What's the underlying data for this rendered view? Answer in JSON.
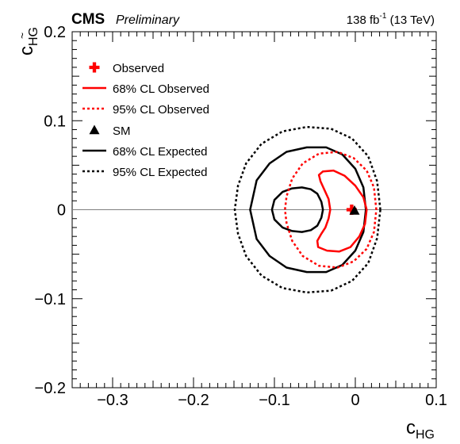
{
  "header": {
    "experiment": "CMS",
    "status": "Preliminary",
    "lumi_value": "138 fb",
    "lumi_exp": "-1",
    "energy": " (13 TeV)"
  },
  "chart_data": {
    "type": "contour",
    "xlabel_main": "c",
    "xlabel_sub": "HG",
    "ylabel_main": "c",
    "ylabel_sub": "HG",
    "ylabel_tilde": "~",
    "xlim": [
      -0.35,
      0.1
    ],
    "ylim": [
      -0.2,
      0.2
    ],
    "xticks": [
      -0.3,
      -0.2,
      -0.1,
      0,
      0.1
    ],
    "xtick_labels": [
      "−0.3",
      "−0.2",
      "−0.1",
      "0",
      "0.1"
    ],
    "yticks": [
      -0.2,
      -0.1,
      0,
      0.1,
      0.2
    ],
    "ytick_labels": [
      "−0.2",
      "−0.1",
      "0",
      "0.1",
      "0.2"
    ],
    "reference_line_y": 0,
    "legend_position": "top-left",
    "legend": [
      {
        "label": "Observed",
        "marker": "cross",
        "color": "#ff0000"
      },
      {
        "label": "68% CL Observed",
        "line": "solid",
        "color": "#ff0000"
      },
      {
        "label": "95% CL Observed",
        "line": "dotted",
        "color": "#ff0000"
      },
      {
        "label": "SM",
        "marker": "triangle",
        "color": "#000000"
      },
      {
        "label": "68% CL Expected",
        "line": "solid",
        "color": "#000000"
      },
      {
        "label": "95% CL Expected",
        "line": "dotted",
        "color": "#000000"
      }
    ],
    "points": {
      "observed": {
        "x": -0.005,
        "y": 0.0
      },
      "sm": {
        "x": 0.0,
        "y": 0.0
      }
    },
    "contours": {
      "expected_68": [
        [
          -0.04,
          0.0
        ],
        [
          -0.042,
          0.009
        ],
        [
          -0.047,
          0.018
        ],
        [
          -0.055,
          0.023
        ],
        [
          -0.066,
          0.025
        ],
        [
          -0.078,
          0.024
        ],
        [
          -0.09,
          0.02
        ],
        [
          -0.1,
          0.011
        ],
        [
          -0.103,
          0.0
        ],
        [
          -0.1,
          -0.011
        ],
        [
          -0.09,
          -0.02
        ],
        [
          -0.078,
          -0.024
        ],
        [
          -0.066,
          -0.025
        ],
        [
          -0.055,
          -0.023
        ],
        [
          -0.047,
          -0.018
        ],
        [
          -0.042,
          -0.009
        ],
        [
          -0.04,
          0.0
        ]
      ],
      "expected_95": [
        [
          0.013,
          0.0
        ],
        [
          0.01,
          0.025
        ],
        [
          0.0,
          0.046
        ],
        [
          -0.016,
          0.062
        ],
        [
          -0.036,
          0.07
        ],
        [
          -0.06,
          0.07
        ],
        [
          -0.085,
          0.065
        ],
        [
          -0.106,
          0.052
        ],
        [
          -0.122,
          0.033
        ],
        [
          -0.13,
          0.0
        ],
        [
          -0.122,
          -0.033
        ],
        [
          -0.106,
          -0.052
        ],
        [
          -0.085,
          -0.065
        ],
        [
          -0.06,
          -0.07
        ],
        [
          -0.036,
          -0.07
        ],
        [
          -0.016,
          -0.062
        ],
        [
          0.0,
          -0.046
        ],
        [
          0.01,
          -0.025
        ],
        [
          0.013,
          0.0
        ]
      ],
      "expected_99": [
        [
          0.031,
          0.0
        ],
        [
          0.027,
          0.032
        ],
        [
          0.016,
          0.06
        ],
        [
          -0.004,
          0.08
        ],
        [
          -0.03,
          0.091
        ],
        [
          -0.06,
          0.093
        ],
        [
          -0.09,
          0.088
        ],
        [
          -0.116,
          0.074
        ],
        [
          -0.135,
          0.052
        ],
        [
          -0.145,
          0.027
        ],
        [
          -0.149,
          0.0
        ],
        [
          -0.145,
          -0.027
        ],
        [
          -0.135,
          -0.052
        ],
        [
          -0.116,
          -0.074
        ],
        [
          -0.09,
          -0.088
        ],
        [
          -0.06,
          -0.093
        ],
        [
          -0.03,
          -0.091
        ],
        [
          -0.004,
          -0.08
        ],
        [
          0.016,
          -0.06
        ],
        [
          0.027,
          -0.032
        ],
        [
          0.031,
          0.0
        ]
      ],
      "observed_68": [
        [
          -0.04,
          0.043
        ],
        [
          -0.027,
          0.044
        ],
        [
          -0.013,
          0.038
        ],
        [
          0.0,
          0.027
        ],
        [
          0.01,
          0.014
        ],
        [
          0.014,
          0.0
        ],
        [
          0.012,
          -0.016
        ],
        [
          0.005,
          -0.03
        ],
        [
          -0.006,
          -0.042
        ],
        [
          -0.02,
          -0.047
        ],
        [
          -0.035,
          -0.046
        ],
        [
          -0.046,
          -0.042
        ],
        [
          -0.047,
          -0.035
        ],
        [
          -0.042,
          -0.027
        ],
        [
          -0.037,
          -0.02
        ],
        [
          -0.033,
          -0.01
        ],
        [
          -0.031,
          0.0
        ],
        [
          -0.033,
          0.012
        ],
        [
          -0.038,
          0.022
        ],
        [
          -0.043,
          0.032
        ],
        [
          -0.045,
          0.039
        ],
        [
          -0.04,
          0.043
        ]
      ],
      "observed_95": [
        [
          0.026,
          0.0
        ],
        [
          0.023,
          0.025
        ],
        [
          0.014,
          0.044
        ],
        [
          -0.002,
          0.058
        ],
        [
          -0.022,
          0.065
        ],
        [
          -0.045,
          0.063
        ],
        [
          -0.065,
          0.052
        ],
        [
          -0.078,
          0.035
        ],
        [
          -0.085,
          0.015
        ],
        [
          -0.087,
          0.0
        ],
        [
          -0.085,
          -0.015
        ],
        [
          -0.078,
          -0.035
        ],
        [
          -0.065,
          -0.052
        ],
        [
          -0.045,
          -0.063
        ],
        [
          -0.022,
          -0.065
        ],
        [
          -0.002,
          -0.058
        ],
        [
          0.014,
          -0.044
        ],
        [
          0.023,
          -0.025
        ],
        [
          0.026,
          0.0
        ]
      ]
    }
  }
}
